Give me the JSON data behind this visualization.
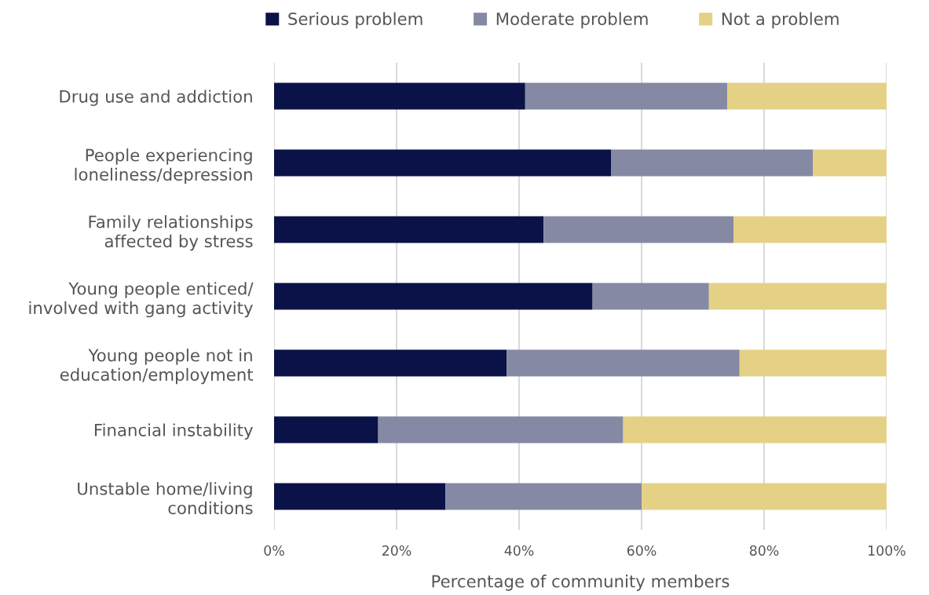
{
  "chart_data": {
    "type": "bar",
    "orientation": "horizontal",
    "stacked": true,
    "xlabel": "Percentage of community members",
    "categories": [
      "Drug use and addiction",
      "People experiencing\nloneliness/depression",
      "Family relationships\naffected by stress",
      "Young people enticed/\ninvolved with gang activity",
      "Young people not in\neducation/employment",
      "Financial instability",
      "Unstable home/living\nconditions"
    ],
    "series": [
      {
        "name": "Serious problem",
        "color": "#0a1247",
        "values": [
          41,
          55,
          44,
          52,
          38,
          17,
          28
        ]
      },
      {
        "name": "Moderate problem",
        "color": "#8589a3",
        "values": [
          33,
          33,
          31,
          19,
          38,
          40,
          32
        ]
      },
      {
        "name": "Not a problem",
        "color": "#e4d186",
        "values": [
          26,
          12,
          25,
          29,
          24,
          43,
          40
        ]
      }
    ],
    "xlim": [
      0,
      100
    ],
    "xticks": [
      {
        "value": 0,
        "label": "0%"
      },
      {
        "value": 20,
        "label": "20%"
      },
      {
        "value": 40,
        "label": "40%"
      },
      {
        "value": 60,
        "label": "60%"
      },
      {
        "value": 80,
        "label": "80%"
      },
      {
        "value": 100,
        "label": "100%"
      }
    ],
    "grid": "x",
    "legend": "top"
  }
}
